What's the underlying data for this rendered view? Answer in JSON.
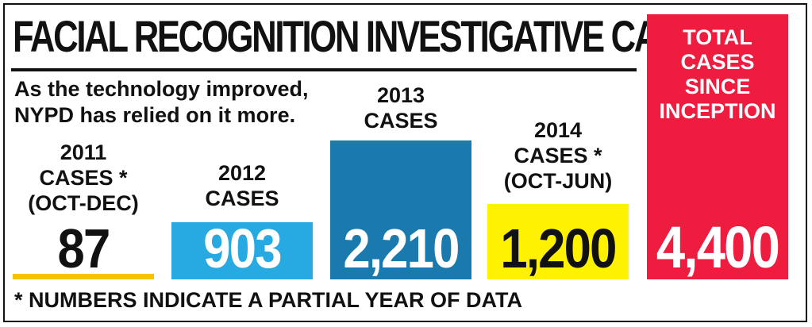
{
  "title": "FACIAL RECOGNITION INVESTIGATIVE CASES",
  "subtitle": "As the technology improved, NYPD has relied on it more.",
  "footnote": "* NUMBERS INDICATE A PARTIAL YEAR OF DATA",
  "colors": {
    "c2011": "#f5c400",
    "c2012": "#27a9e1",
    "c2013": "#1a7aad",
    "c2014": "#fff200",
    "total": "#ee1c3e",
    "text": "#111111"
  },
  "chart_data": {
    "type": "bar",
    "title": "FACIAL RECOGNITION INVESTIGATIVE CASES",
    "categories": [
      "2011\nCASES *\n(OCT-DEC)",
      "2012\nCASES",
      "2013\nCASES",
      "2014\nCASES *\n(OCT-JUN)"
    ],
    "values": [
      87,
      903,
      2210,
      1200
    ],
    "value_labels": [
      "87",
      "903",
      "2,210",
      "1,200"
    ],
    "total": {
      "label": "TOTAL\nCASES\nSINCE\nINCEPTION",
      "value": 4400,
      "value_label": "4,400"
    },
    "legend": "none",
    "grid": false
  }
}
